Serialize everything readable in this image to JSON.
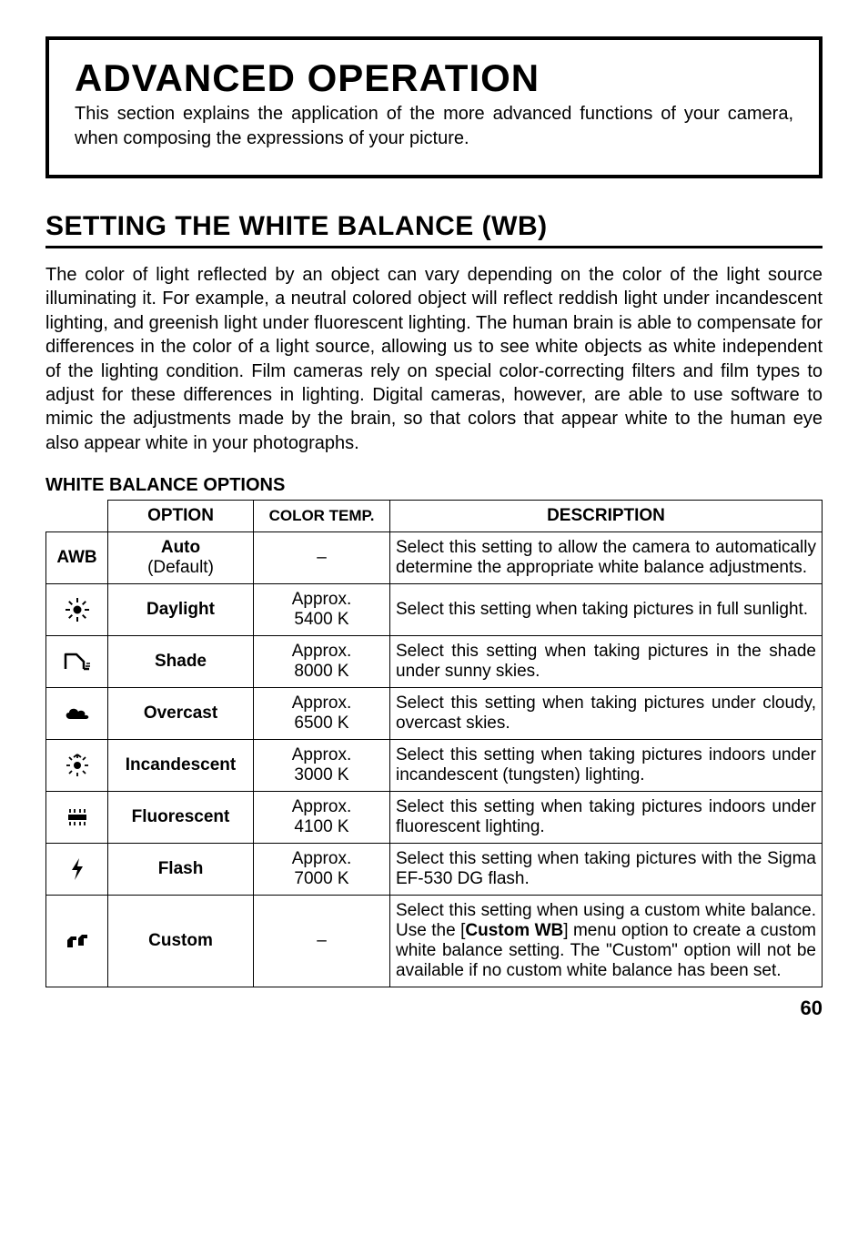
{
  "framed": {
    "title": "ADVANCED OPERATION",
    "body": "This section explains the application of the more advanced functions of your camera, when composing the expressions of your picture."
  },
  "section_heading": "SETTING THE WHITE BALANCE   (WB)",
  "body_para": "The color of light reflected by an object can vary depending on the color of the light source illuminating it. For example, a neutral colored object will reflect reddish light under incandescent lighting, and greenish light under fluorescent lighting. The human brain is able to compensate for differences in the color of a light source, allowing us to see white objects as white independent of the lighting condition. Film cameras rely on special color-correcting filters and film types to adjust for these differences in lighting. Digital cameras, however, are able to use software to mimic the adjustments made by the brain, so that colors that appear white to the human eye also appear white in your photographs.",
  "sub_heading": "WHITE BALANCE OPTIONS",
  "table": {
    "headers": {
      "option": "OPTION",
      "temp": "COLOR TEMP.",
      "desc": "DESCRIPTION"
    },
    "rows": [
      {
        "icon_text": "AWB",
        "option": "Auto",
        "option_sub": "(Default)",
        "temp": "–",
        "desc": "Select this setting to allow the camera to automatically determine the appropriate white balance adjustments."
      },
      {
        "icon_text": "",
        "option": "Daylight",
        "option_sub": "",
        "temp": "Approx.\n5400 K",
        "desc": "Select this setting when taking pictures in full sunlight."
      },
      {
        "icon_text": "",
        "option": "Shade",
        "option_sub": "",
        "temp": "Approx.\n8000 K",
        "desc": "Select this setting when taking pictures in the shade under sunny skies."
      },
      {
        "icon_text": "",
        "option": "Overcast",
        "option_sub": "",
        "temp": "Approx.\n6500 K",
        "desc": "Select this setting when taking pictures under cloudy, overcast skies."
      },
      {
        "icon_text": "",
        "option": "Incandescent",
        "option_sub": "",
        "temp": "Approx.\n3000 K",
        "desc": "Select this setting when taking pictures indoors under incandescent (tungsten) lighting."
      },
      {
        "icon_text": "",
        "option": "Fluorescent",
        "option_sub": "",
        "temp": "Approx.\n4100 K",
        "desc": "Select this setting when taking pictures indoors under fluorescent lighting."
      },
      {
        "icon_text": "",
        "option": "Flash",
        "option_sub": "",
        "temp": "Approx.\n7000 K",
        "desc": "Select this setting when taking pictures with the Sigma EF-530 DG flash."
      },
      {
        "icon_text": "",
        "option": "Custom",
        "option_sub": "",
        "temp": "–",
        "desc_html": "Select this setting when using a custom white balance. Use the [<b>Custom WB</b>] menu option to create a custom white balance setting. The \"Custom\" option will not be available if no custom white balance has been set."
      }
    ]
  },
  "page_number": "60",
  "colors": {
    "text": "#000000",
    "bg": "#ffffff"
  }
}
